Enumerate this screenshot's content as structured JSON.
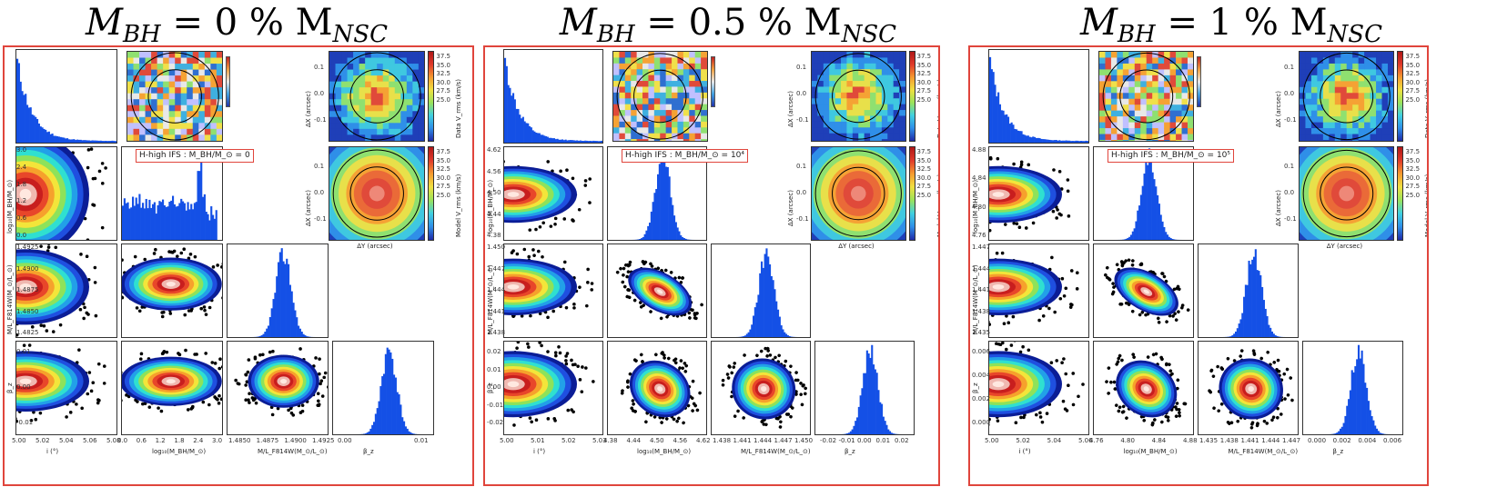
{
  "panels": [
    {
      "title_main": "M",
      "title_sub1": "BH",
      "title_eq": " = 0 % M",
      "title_sub2": "NSC",
      "ifs_label": "H-high IFS : M_BH/M_⊙ = 0",
      "labels": {
        "y_row1": "log₁₀(M_BH/M_⊙)",
        "y_row2": "M/L_F814W(M_⊙/L_⊙)",
        "y_row3": "β_z",
        "x_col0": "i (°)",
        "x_col1": "log₁₀(M_BH/M_⊙)",
        "x_col2": "M/L_F814W(M_⊙/L_⊙)",
        "x_col3": "β_z"
      },
      "ticks": {
        "row1": [
          "3.0",
          "2.4",
          "1.8",
          "1.2",
          "0.6",
          "0.0"
        ],
        "row2": [
          "1.4925",
          "1.4900",
          "1.4875",
          "1.4850",
          "1.4825"
        ],
        "row3": [
          "0.01",
          "0.00",
          "-0.01"
        ],
        "col0": [
          "5.00",
          "5.02",
          "5.04",
          "5.06",
          "5.08"
        ],
        "col1": [
          "0.0",
          "0.6",
          "1.2",
          "1.8",
          "2.4",
          "3.0"
        ],
        "col2": [
          "1.4850",
          "1.4875",
          "1.4900",
          "1.4925"
        ],
        "col3": [
          "0.00",
          "0.01"
        ]
      }
    },
    {
      "title_main": "M",
      "title_sub1": "BH",
      "title_eq": " = 0.5 % M",
      "title_sub2": "NSC",
      "ifs_label": "H-high IFS : M_BH/M_⊙ = 10⁴",
      "labels": {
        "y_row1": "log₁₀(M_BH/M_⊙)",
        "y_row2": "M/L_F814W(M_⊙/L_⊙)",
        "y_row3": "β_z",
        "x_col0": "i (°)",
        "x_col1": "log₁₀(M_BH/M_⊙)",
        "x_col2": "M/L_F814W(M_⊙/L_⊙)",
        "x_col3": "β_z"
      },
      "ticks": {
        "row1": [
          "4.62",
          "4.56",
          "4.50",
          "4.44",
          "4.38"
        ],
        "row2": [
          "1.450",
          "1.447",
          "1.444",
          "1.441",
          "1.438"
        ],
        "row3": [
          "0.02",
          "0.01",
          "0.00",
          "-0.01",
          "-0.02"
        ],
        "col0": [
          "5.00",
          "5.01",
          "5.02",
          "5.03"
        ],
        "col1": [
          "4.38",
          "4.44",
          "4.50",
          "4.56",
          "4.62"
        ],
        "col2": [
          "1.438",
          "1.441",
          "1.444",
          "1.447",
          "1.450"
        ],
        "col3": [
          "-0.02",
          "-0.01",
          "0.00",
          "0.01",
          "0.02"
        ]
      }
    },
    {
      "title_main": "M",
      "title_sub1": "BH",
      "title_eq": " = 1 % M",
      "title_sub2": "NSC",
      "ifs_label": "H-high IFS : M_BH/M_⊙ = 10⁵",
      "labels": {
        "y_row1": "log₁₀(M_BH/M_⊙)",
        "y_row2": "M/L_F814W(M_⊙/L_⊙)",
        "y_row3": "β_z",
        "x_col0": "i (°)",
        "x_col1": "log₁₀(M_BH/M_⊙)",
        "x_col2": "M/L_F814W(M_⊙/L_⊙)",
        "x_col3": "β_z"
      },
      "ticks": {
        "row1": [
          "4.88",
          "4.84",
          "4.80",
          "4.76"
        ],
        "row2": [
          "1.447",
          "1.444",
          "1.441",
          "1.438",
          "1.435"
        ],
        "row3": [
          "0.006",
          "0.004",
          "0.002",
          "0.000"
        ],
        "col0": [
          "5.00",
          "5.02",
          "5.04",
          "5.06"
        ],
        "col1": [
          "4.76",
          "4.80",
          "4.84",
          "4.88"
        ],
        "col2": [
          "1.435",
          "1.438",
          "1.441",
          "1.444",
          "1.447"
        ],
        "col3": [
          "0.000",
          "0.002",
          "0.004",
          "0.006"
        ]
      }
    }
  ],
  "maps": {
    "data_cbar_label": "Data V_rms (km/s)",
    "model_cbar_label": "Model V_rms (km/s)",
    "cbar_ticks": [
      "37.5",
      "35.0",
      "32.5",
      "30.0",
      "27.5",
      "25.0"
    ],
    "ylabel": "ΔX (arcsec)",
    "xlabel": "ΔY (arcsec)",
    "yticks": [
      "0.1",
      "0.0",
      "-0.1"
    ]
  },
  "colors": {
    "frame": "#e0453c",
    "hist": "#1450e6"
  }
}
